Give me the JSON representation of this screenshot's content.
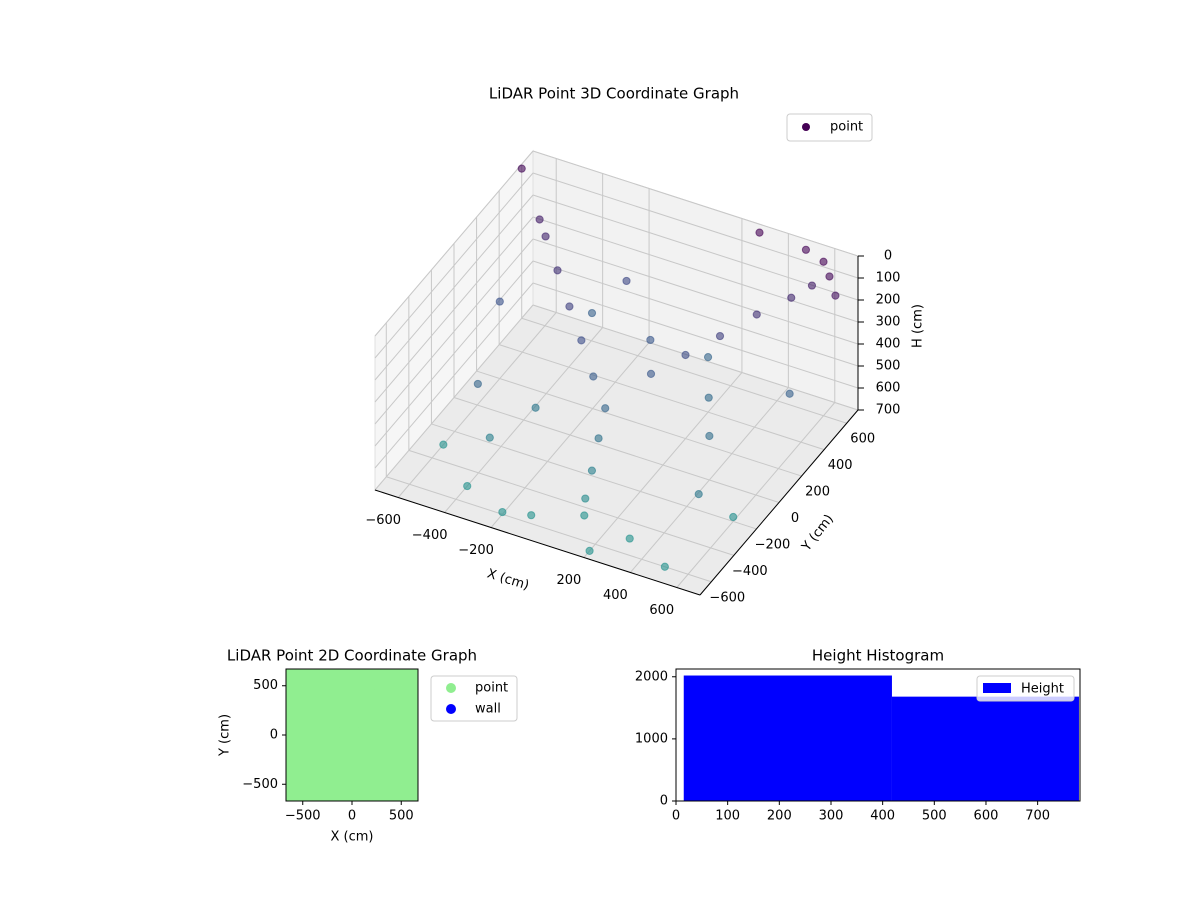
{
  "chart_data": [
    {
      "type": "scatter3d",
      "title": "LiDAR Point 3D Coordinate Graph",
      "x_label": "X (cm)",
      "y_label": "Y (cm)",
      "z_label": "H (cm)",
      "xlim": [
        -700,
        700
      ],
      "ylim": [
        -700,
        700
      ],
      "zlim": [
        0,
        700
      ],
      "z_inverted": true,
      "grid": true,
      "cmap": "viridis",
      "legend_loc": "upper right",
      "xticks": [
        {
          "value": -600,
          "label": "−600"
        },
        {
          "value": -400,
          "label": "−400"
        },
        {
          "value": -200,
          "label": "−200"
        },
        200,
        400,
        600
      ],
      "yticks": [
        {
          "value": -600,
          "label": "−600"
        },
        {
          "value": -400,
          "label": "−400"
        },
        {
          "value": -200,
          "label": "−200"
        },
        0,
        200,
        400,
        600
      ],
      "zticks": [
        0,
        100,
        200,
        300,
        400,
        500,
        600,
        700
      ],
      "series": [
        {
          "name": "point",
          "color": "#440154",
          "x": [
            -100,
            -200,
            -300,
            -400,
            -500,
            -550,
            100,
            200,
            300,
            400,
            500,
            560,
            0,
            20,
            40,
            60,
            80,
            -400,
            -200,
            200,
            500,
            -600,
            600,
            300,
            -100,
            -500,
            -300,
            400,
            600,
            -600,
            200,
            -200,
            500,
            -400,
            300,
            0,
            -300,
            600,
            650,
            -700,
            500,
            300,
            700
          ],
          "y": [
            0,
            100,
            200,
            300,
            400,
            450,
            100,
            200,
            300,
            420,
            520,
            580,
            -100,
            -200,
            -300,
            -400,
            -450,
            -500,
            -600,
            -650,
            -600,
            -300,
            -200,
            -500,
            -550,
            -200,
            -100,
            0,
            300,
            200,
            400,
            500,
            -300,
            -300,
            200,
            300,
            400,
            600,
            550,
            600,
            650,
            650,
            500
          ],
          "z": [
            400,
            330,
            270,
            200,
            140,
            110,
            380,
            320,
            260,
            200,
            150,
            110,
            450,
            520,
            600,
            660,
            700,
            700,
            690,
            700,
            700,
            700,
            680,
            700,
            700,
            450,
            550,
            500,
            420,
            350,
            450,
            300,
            550,
            600,
            480,
            380,
            420,
            0,
            20,
            20,
            10,
            0,
            60
          ]
        }
      ]
    },
    {
      "type": "scatter",
      "title": "LiDAR Point 2D Coordinate Graph",
      "x_label": "X (cm)",
      "y_label": "Y (cm)",
      "xlim": [
        -670,
        670
      ],
      "ylim": [
        -670,
        670
      ],
      "legend_loc": "outside upper right",
      "xticks": [
        {
          "value": -500,
          "label": "−500"
        },
        0,
        500
      ],
      "yticks": [
        {
          "value": -500,
          "label": "−500"
        },
        0,
        500
      ],
      "series": [
        {
          "name": "point",
          "color": "#90ee90",
          "x": [
            -600,
            -400,
            -200,
            0,
            200,
            400,
            600,
            -600,
            -400,
            -200,
            0,
            200,
            400,
            600,
            -600,
            -400,
            -200,
            0,
            200,
            400,
            600,
            -600,
            -400,
            -200,
            0,
            200,
            400,
            600,
            -600,
            -400,
            -200,
            0,
            200,
            400,
            600,
            -600,
            -400,
            -200,
            0,
            200,
            400,
            600,
            -600,
            -400,
            -200,
            0,
            200,
            400,
            600
          ],
          "y": [
            -600,
            -600,
            -600,
            -600,
            -600,
            -600,
            -600,
            -400,
            -400,
            -400,
            -400,
            -400,
            -400,
            -400,
            -200,
            -200,
            -200,
            -200,
            -200,
            -200,
            -200,
            0,
            0,
            0,
            0,
            0,
            0,
            0,
            200,
            200,
            200,
            200,
            200,
            200,
            200,
            400,
            400,
            400,
            400,
            400,
            400,
            400,
            600,
            600,
            600,
            600,
            600,
            600,
            600
          ]
        },
        {
          "name": "wall",
          "color": "#0000ff",
          "x": [],
          "y": []
        }
      ]
    },
    {
      "type": "histogram",
      "title": "Height Histogram",
      "name": "Height",
      "color": "#0000ff",
      "legend_loc": "upper right",
      "bins": [
        15,
        418,
        780
      ],
      "values": [
        2020,
        1680
      ],
      "xlim": [
        0,
        782
      ],
      "ylim": [
        0,
        2125
      ],
      "xticks": [
        0,
        100,
        200,
        300,
        400,
        500,
        600,
        700
      ],
      "yticks": [
        0,
        1000,
        2000
      ]
    }
  ]
}
